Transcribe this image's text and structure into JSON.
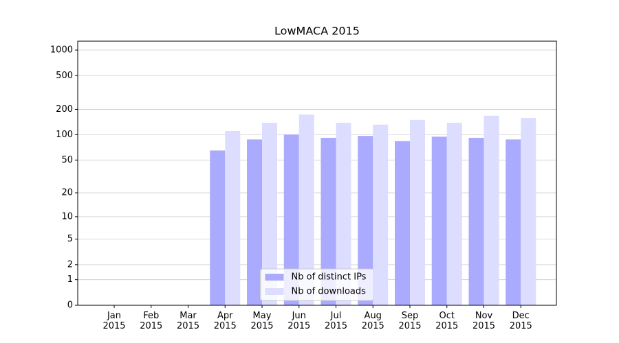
{
  "chart_data": {
    "type": "bar",
    "title": "LowMACA 2015",
    "scale": "log1p",
    "categories": [
      "Jan 2015",
      "Feb 2015",
      "Mar 2015",
      "Apr 2015",
      "May 2015",
      "Jun 2015",
      "Jul 2015",
      "Aug 2015",
      "Sep 2015",
      "Oct 2015",
      "Nov 2015",
      "Dec 2015"
    ],
    "series": [
      {
        "name": "Nb of distinct IPs",
        "color": "#aaaaff",
        "values": [
          0,
          0,
          0,
          65,
          88,
          101,
          92,
          97,
          84,
          95,
          92,
          88
        ]
      },
      {
        "name": "Nb of downloads",
        "color": "#ddddff",
        "values": [
          0,
          0,
          0,
          111,
          139,
          174,
          139,
          132,
          150,
          139,
          168,
          158
        ]
      }
    ],
    "ylim": [
      0,
      1273
    ],
    "yticks": [
      0,
      1,
      2,
      5,
      10,
      20,
      50,
      100,
      200,
      500,
      1000
    ],
    "grid": true,
    "legend": "lower center"
  }
}
